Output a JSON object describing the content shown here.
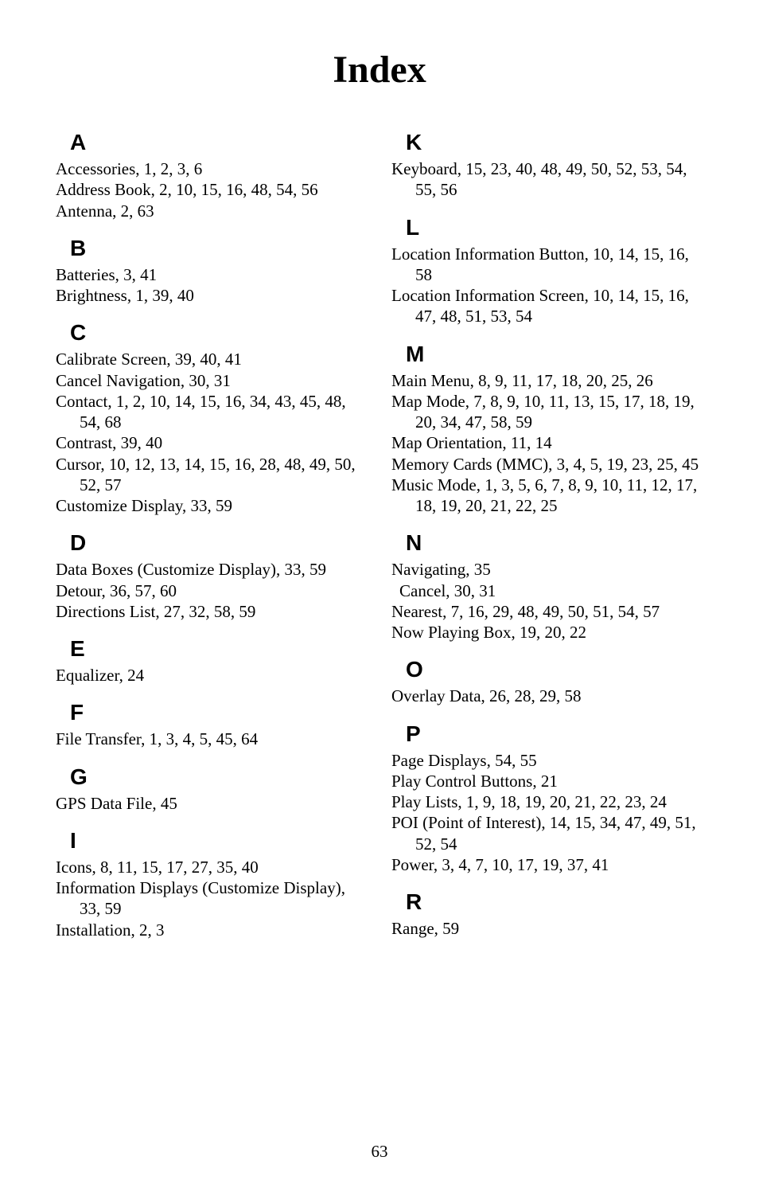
{
  "title": "Index",
  "page_number": "63",
  "left_sections": [
    {
      "letter": "A",
      "entries": [
        {
          "text": "Accessories, 1, 2, 3, 6"
        },
        {
          "text": "Address Book, 2, 10, 15, 16, 48, 54, 56"
        },
        {
          "text": "Antenna, 2, 63"
        }
      ]
    },
    {
      "letter": "B",
      "entries": [
        {
          "text": "Batteries, 3, 41"
        },
        {
          "text": "Brightness, 1, 39, 40"
        }
      ]
    },
    {
      "letter": "C",
      "entries": [
        {
          "text": "Calibrate Screen, 39, 40, 41"
        },
        {
          "text": "Cancel Navigation, 30, 31"
        },
        {
          "text": "Contact, 1, 2, 10, 14, 15, 16, 34, 43, 45, 48, 54, 68"
        },
        {
          "text": "Contrast, 39, 40"
        },
        {
          "text": "Cursor, 10, 12, 13, 14, 15, 16, 28, 48, 49, 50, 52, 57"
        },
        {
          "text": "Customize Display, 33, 59"
        }
      ]
    },
    {
      "letter": "D",
      "entries": [
        {
          "text": "Data Boxes (Customize Display), 33, 59"
        },
        {
          "text": "Detour, 36, 57, 60"
        },
        {
          "text": "Directions List, 27, 32, 58, 59"
        }
      ]
    },
    {
      "letter": "E",
      "entries": [
        {
          "text": "Equalizer, 24"
        }
      ]
    },
    {
      "letter": "F",
      "entries": [
        {
          "text": "File Transfer, 1, 3, 4, 5, 45, 64"
        }
      ]
    },
    {
      "letter": "G",
      "entries": [
        {
          "text": "GPS Data File, 45"
        }
      ]
    },
    {
      "letter": "I",
      "entries": [
        {
          "text": "Icons, 8, 11, 15, 17, 27, 35, 40"
        },
        {
          "text": "Information Displays (Customize Display), 33, 59"
        },
        {
          "text": "Installation, 2, 3"
        }
      ]
    }
  ],
  "right_sections": [
    {
      "letter": "K",
      "entries": [
        {
          "text": "Keyboard, 15, 23, 40, 48, 49, 50, 52, 53, 54, 55, 56"
        }
      ]
    },
    {
      "letter": "L",
      "entries": [
        {
          "text": "Location Information Button, 10, 14, 15, 16, 58"
        },
        {
          "text": "Location Information Screen, 10, 14, 15, 16, 47, 48, 51, 53, 54"
        }
      ]
    },
    {
      "letter": "M",
      "entries": [
        {
          "text": "Main Menu, 8, 9, 11, 17, 18, 20, 25, 26"
        },
        {
          "text": "Map Mode, 7, 8, 9, 10, 11, 13, 15, 17, 18, 19, 20, 34, 47, 58, 59"
        },
        {
          "text": "Map Orientation, 11, 14"
        },
        {
          "text": "Memory Cards (MMC), 3, 4, 5, 19, 23, 25, 45"
        },
        {
          "text": "Music Mode, 1, 3, 5, 6, 7, 8, 9, 10, 11, 12, 17, 18, 19, 20, 21, 22, 25"
        }
      ]
    },
    {
      "letter": "N",
      "entries": [
        {
          "text": "Navigating, 35"
        },
        {
          "text": "Cancel, 30, 31",
          "sub": true
        },
        {
          "text": "Nearest, 7, 16, 29, 48, 49, 50, 51, 54, 57"
        },
        {
          "text": "Now Playing Box, 19, 20, 22"
        }
      ]
    },
    {
      "letter": "O",
      "entries": [
        {
          "text": "Overlay Data, 26, 28, 29, 58"
        }
      ]
    },
    {
      "letter": "P",
      "entries": [
        {
          "text": "Page Displays, 54, 55"
        },
        {
          "text": "Play Control Buttons, 21"
        },
        {
          "text": "Play Lists, 1, 9, 18, 19, 20, 21, 22, 23, 24"
        },
        {
          "text": "POI (Point of Interest), 14, 15, 34, 47, 49, 51, 52, 54"
        },
        {
          "text": "Power, 3, 4, 7, 10, 17, 19, 37, 41"
        }
      ]
    },
    {
      "letter": "R",
      "entries": [
        {
          "text": "Range, 59"
        }
      ]
    }
  ]
}
